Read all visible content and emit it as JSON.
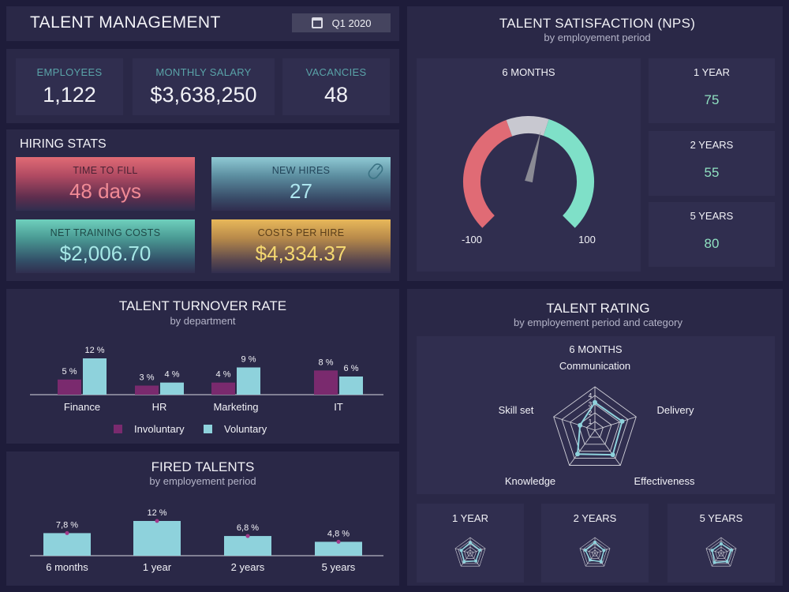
{
  "header": {
    "title": "TALENT MANAGEMENT",
    "period": "Q1 2020",
    "calendar_icon": "calendar-icon"
  },
  "kpis": [
    {
      "label": "EMPLOYEES",
      "value": "1,122"
    },
    {
      "label": "MONTHLY SALARY",
      "value": "$3,638,250"
    },
    {
      "label": "VACANCIES",
      "value": "48"
    }
  ],
  "hiring": {
    "title": "HIRING STATS",
    "time_to_fill": {
      "label": "TIME TO FILL",
      "value": "48 days",
      "color": "#e06b75"
    },
    "new_hires": {
      "label": "NEW HIRES",
      "value": "27",
      "color": "#8fc9d4",
      "icon": "mouse-icon"
    },
    "net_training": {
      "label": "NET TRAINING COSTS",
      "value": "$2,006.70",
      "color": "#6fd0bd"
    },
    "costs_per_hire": {
      "label": "COSTS PER HIRE",
      "value": "$4,334.37",
      "color": "#e8b85a"
    }
  },
  "nps": {
    "title": "TALENT SATISFACTION (NPS)",
    "subtitle": "by employement period",
    "main_label": "6 MONTHS",
    "gauge_min": "-100",
    "gauge_max": "100",
    "gauge_value": 10,
    "boxes": [
      {
        "label": "1 YEAR",
        "value": "75"
      },
      {
        "label": "2 YEARS",
        "value": "55"
      },
      {
        "label": "5 YEARS",
        "value": "80"
      }
    ],
    "colors": {
      "negative": "#e06b75",
      "neutral": "#c8c8d0",
      "positive": "#7fe0c8"
    }
  },
  "chart_data": [
    {
      "type": "bar",
      "title": "TALENT TURNOVER RATE",
      "subtitle": "by department",
      "categories": [
        "Finance",
        "HR",
        "Marketing",
        "IT"
      ],
      "series": [
        {
          "name": "Involuntary",
          "values": [
            5,
            3,
            4,
            8
          ],
          "labels": [
            "5 %",
            "3 %",
            "4 %",
            "8 %"
          ],
          "color": "#7a2a6e"
        },
        {
          "name": "Voluntary",
          "values": [
            12,
            4,
            9,
            6
          ],
          "labels": [
            "12 %",
            "4 %",
            "9 %",
            "6 %"
          ],
          "color": "#8ed2dc"
        }
      ],
      "ylim": [
        0,
        12
      ]
    },
    {
      "type": "bar",
      "title": "FIRED TALENTS",
      "subtitle": "by employement period",
      "categories": [
        "6 months",
        "1 year",
        "2 years",
        "5 years"
      ],
      "values": [
        7.8,
        12,
        6.8,
        4.8
      ],
      "labels": [
        "7,8 %",
        "12 %",
        "6,8 %",
        "4,8 %"
      ],
      "color": "#8ed2dc",
      "marker_color": "#a03a8a",
      "ylim": [
        0,
        12
      ]
    },
    {
      "type": "radar",
      "title": "TALENT RATING",
      "subtitle": "by employement period and category",
      "period": "6 MONTHS",
      "axes": [
        "Communication",
        "Delivery",
        "Effectiveness",
        "Knowledge",
        "Skill set"
      ],
      "ticks": [
        "1",
        "2",
        "3",
        "4"
      ],
      "max": 5,
      "values": [
        3.2,
        3.3,
        3.5,
        3.4,
        1.8
      ],
      "color": "#8ed2dc",
      "mini": [
        {
          "label": "1 YEAR",
          "values": [
            3.4,
            3.2,
            3.0,
            3.3,
            3.0
          ]
        },
        {
          "label": "2 YEARS",
          "values": [
            3.5,
            3.0,
            3.3,
            2.6,
            3.2
          ]
        },
        {
          "label": "5 YEARS",
          "values": [
            3.0,
            3.4,
            3.2,
            3.6,
            3.0
          ]
        }
      ]
    }
  ]
}
